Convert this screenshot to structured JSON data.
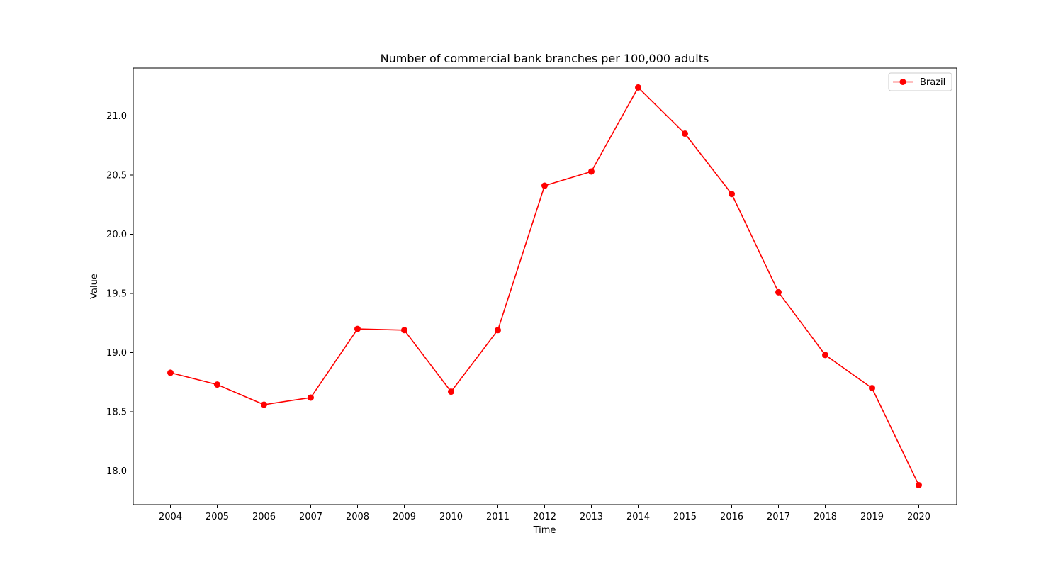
{
  "chart_data": {
    "type": "line",
    "title": "Number of commercial bank branches per 100,000 adults",
    "xlabel": "Time",
    "ylabel": "Value",
    "x": [
      "2004",
      "2005",
      "2006",
      "2007",
      "2008",
      "2009",
      "2010",
      "2011",
      "2012",
      "2013",
      "2014",
      "2015",
      "2016",
      "2017",
      "2018",
      "2019",
      "2020"
    ],
    "series": [
      {
        "name": "Brazil",
        "color": "#ff0000",
        "marker": "circle",
        "values": [
          18.83,
          18.73,
          18.56,
          18.62,
          19.2,
          19.19,
          18.67,
          19.19,
          20.41,
          20.53,
          21.24,
          20.85,
          20.34,
          19.51,
          18.98,
          18.7,
          17.88
        ]
      }
    ],
    "ylim": [
      17.74,
      22.38
    ],
    "yticks": [
      "18.0",
      "18.5",
      "19.0",
      "19.5",
      "20.0",
      "20.5",
      "21.0"
    ],
    "grid": false,
    "legend_position": "top-right"
  }
}
